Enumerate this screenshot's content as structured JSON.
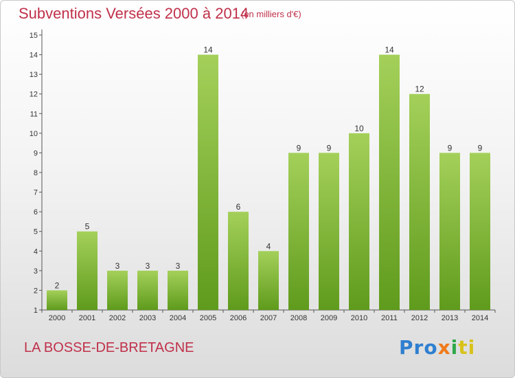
{
  "header": {
    "title": "Subventions Versées 2000 à 2014",
    "subtitle": "(en milliers d'€)"
  },
  "footer": {
    "commune": "LA BOSSE-DE-BRETAGNE",
    "logo": {
      "p1": "Pro",
      "p2": "x",
      "p3": "i",
      "p4": "ti"
    }
  },
  "colors": {
    "bar_top": "#a4d05a",
    "bar_bottom": "#5f9b1c",
    "text_accent": "#c0304a"
  },
  "chart_data": {
    "type": "bar",
    "title": "Subventions Versées 2000 à 2014",
    "subtitle": "(en milliers d'€)",
    "categories": [
      "2000",
      "2001",
      "2002",
      "2003",
      "2004",
      "2005",
      "2006",
      "2007",
      "2008",
      "2009",
      "2010",
      "2011",
      "2012",
      "2013",
      "2014"
    ],
    "values": [
      2,
      5,
      3,
      3,
      3,
      14,
      6,
      4,
      9,
      9,
      10,
      14,
      12,
      9,
      9
    ],
    "data_labels": [
      "2",
      "5",
      "3",
      "3",
      "3",
      "14",
      "6",
      "4",
      "9",
      "9",
      "10",
      "14",
      "12",
      "9",
      "9"
    ],
    "yticks": [
      "1",
      "2",
      "3",
      "4",
      "5",
      "6",
      "7",
      "8",
      "9",
      "10",
      "11",
      "12",
      "13",
      "14",
      "15"
    ],
    "ylim": [
      1,
      15
    ],
    "xlabel": "",
    "ylabel": "",
    "grid": false,
    "legend": "none"
  }
}
